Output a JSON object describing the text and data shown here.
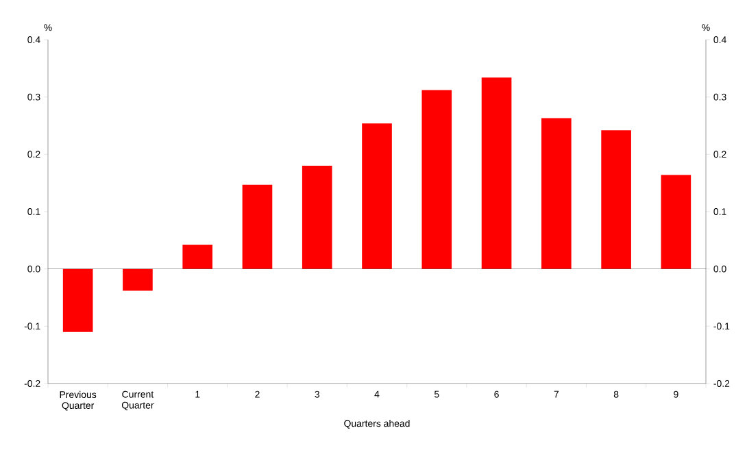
{
  "chart_data": {
    "type": "bar",
    "categories": [
      "Previous Quarter",
      "Current Quarter",
      "1",
      "2",
      "3",
      "4",
      "5",
      "6",
      "7",
      "8",
      "9"
    ],
    "values": [
      -0.11,
      -0.038,
      0.042,
      0.147,
      0.18,
      0.254,
      0.312,
      0.334,
      0.263,
      0.242,
      0.164
    ],
    "color": "#ff0000",
    "xlabel": "Quarters ahead",
    "annotations": [
      "%",
      "%"
    ],
    "ylim": [
      -0.2,
      0.4
    ],
    "yticks": [
      -0.2,
      -0.1,
      {
        "value": 0,
        "label": "0.0"
      },
      0.1,
      0.2,
      0.3,
      0.4
    ],
    "y2lim": [
      -0.2,
      0.4
    ],
    "y2ticks": [
      -0.2,
      -0.1,
      {
        "value": 0,
        "label": "0.0"
      },
      0.1,
      0.2,
      0.3,
      0.4
    ]
  }
}
